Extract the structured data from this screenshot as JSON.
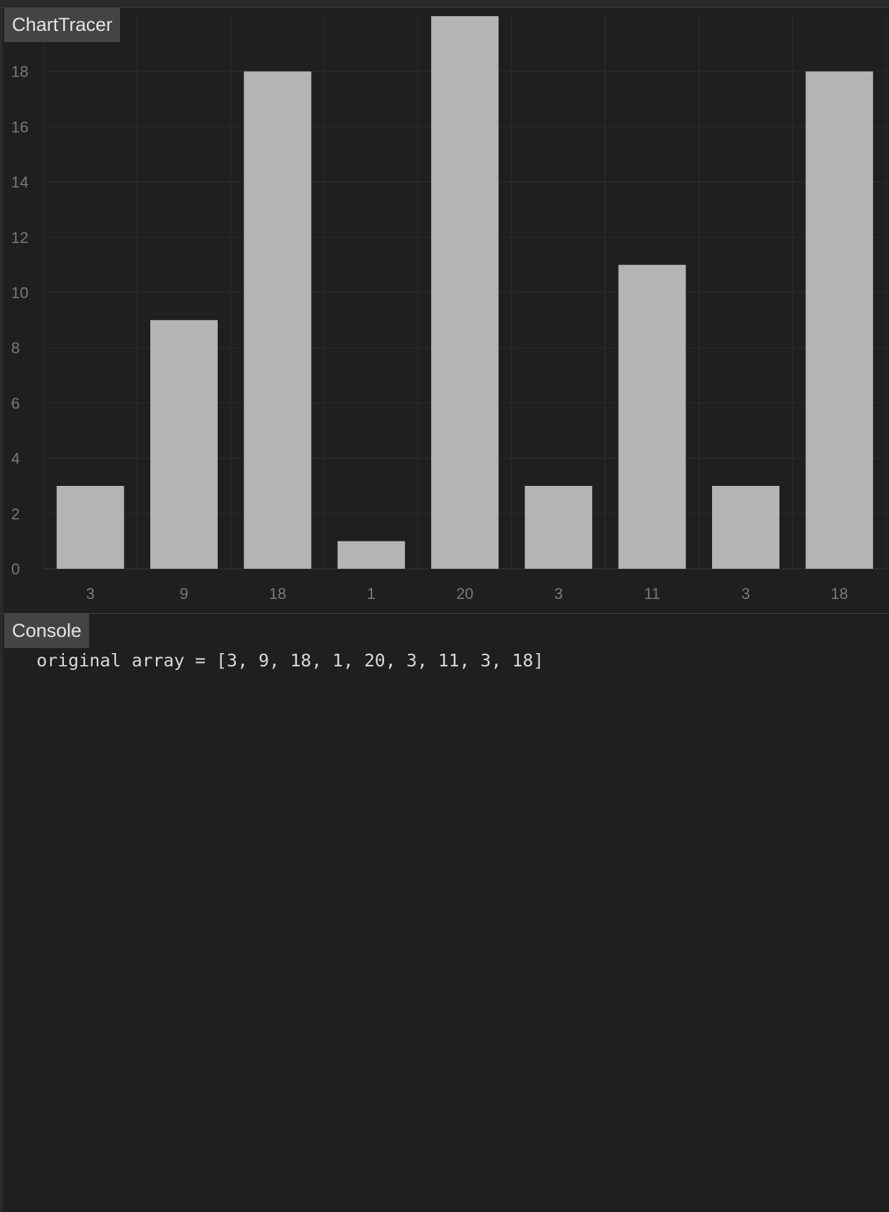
{
  "chart_panel": {
    "title": "ChartTracer"
  },
  "console_panel": {
    "title": "Console",
    "lines": [
      "original array = [3, 9, 18, 1, 20, 3, 11, 3, 18]"
    ]
  },
  "colors": {
    "background": "#1f1f1f",
    "bar": "#b4b4b4",
    "tab": "#444444",
    "tick_text": "#7a7a7a",
    "grid": "#2c2c2c"
  },
  "chart_data": {
    "type": "bar",
    "categories": [
      "3",
      "9",
      "18",
      "1",
      "20",
      "3",
      "11",
      "3",
      "18"
    ],
    "values": [
      3,
      9,
      18,
      1,
      20,
      3,
      11,
      3,
      18
    ],
    "y_ticks": [
      "0",
      "2",
      "4",
      "6",
      "8",
      "10",
      "12",
      "14",
      "16",
      "18"
    ],
    "ylim": [
      0,
      20
    ],
    "grid": true,
    "title": "",
    "xlabel": "",
    "ylabel": ""
  }
}
